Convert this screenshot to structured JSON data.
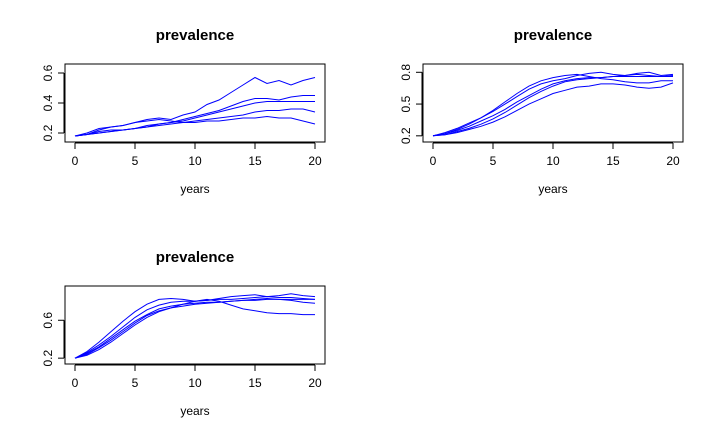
{
  "chart_data": [
    {
      "type": "line",
      "title": "prevalence",
      "xlabel": "years",
      "ylabel": "",
      "xlim": [
        0,
        20
      ],
      "ylim": [
        0.16,
        0.64
      ],
      "xticks": [
        0,
        5,
        10,
        15,
        20
      ],
      "yticks": [
        0.2,
        0.4,
        0.6
      ],
      "ytick_labels": [
        "0.2",
        "0.4",
        "0.6"
      ],
      "line_color": "#0000ff",
      "grid": false,
      "series": [
        {
          "x": [
            0,
            1,
            2,
            3,
            4,
            5,
            6,
            7,
            8,
            9,
            10,
            11,
            12,
            13,
            14,
            15,
            16,
            17,
            18,
            19,
            20
          ],
          "values": [
            0.18,
            0.19,
            0.22,
            0.24,
            0.25,
            0.27,
            0.29,
            0.3,
            0.29,
            0.32,
            0.34,
            0.39,
            0.42,
            0.47,
            0.52,
            0.57,
            0.53,
            0.55,
            0.52,
            0.55,
            0.57
          ]
        },
        {
          "x": [
            0,
            1,
            2,
            3,
            4,
            5,
            6,
            7,
            8,
            9,
            10,
            11,
            12,
            13,
            14,
            15,
            16,
            17,
            18,
            19,
            20
          ],
          "values": [
            0.18,
            0.19,
            0.21,
            0.22,
            0.22,
            0.23,
            0.25,
            0.26,
            0.27,
            0.29,
            0.31,
            0.33,
            0.35,
            0.38,
            0.41,
            0.43,
            0.43,
            0.42,
            0.44,
            0.45,
            0.45
          ]
        },
        {
          "x": [
            0,
            1,
            2,
            3,
            4,
            5,
            6,
            7,
            8,
            9,
            10,
            11,
            12,
            13,
            14,
            15,
            16,
            17,
            18,
            19,
            20
          ],
          "values": [
            0.18,
            0.19,
            0.2,
            0.21,
            0.22,
            0.23,
            0.24,
            0.26,
            0.27,
            0.28,
            0.3,
            0.32,
            0.34,
            0.36,
            0.38,
            0.4,
            0.41,
            0.41,
            0.41,
            0.41,
            0.41
          ]
        },
        {
          "x": [
            0,
            1,
            2,
            3,
            4,
            5,
            6,
            7,
            8,
            9,
            10,
            11,
            12,
            13,
            14,
            15,
            16,
            17,
            18,
            19,
            20
          ],
          "values": [
            0.18,
            0.19,
            0.2,
            0.21,
            0.22,
            0.23,
            0.24,
            0.25,
            0.26,
            0.27,
            0.28,
            0.29,
            0.3,
            0.31,
            0.32,
            0.34,
            0.35,
            0.35,
            0.36,
            0.36,
            0.34
          ]
        },
        {
          "x": [
            0,
            1,
            2,
            3,
            4,
            5,
            6,
            7,
            8,
            9,
            10,
            11,
            12,
            13,
            14,
            15,
            16,
            17,
            18,
            19,
            20
          ],
          "values": [
            0.18,
            0.2,
            0.23,
            0.24,
            0.25,
            0.27,
            0.28,
            0.29,
            0.28,
            0.27,
            0.27,
            0.28,
            0.28,
            0.29,
            0.3,
            0.3,
            0.31,
            0.3,
            0.3,
            0.28,
            0.26
          ]
        }
      ]
    },
    {
      "type": "line",
      "title": "prevalence",
      "xlabel": "years",
      "ylabel": "",
      "xlim": [
        0,
        20
      ],
      "ylim": [
        0.17,
        0.85
      ],
      "xticks": [
        0,
        5,
        10,
        15,
        20
      ],
      "yticks": [
        0.2,
        0.5,
        0.8
      ],
      "ytick_labels": [
        "0.2",
        "0.5",
        "0.8"
      ],
      "line_color": "#0000ff",
      "grid": false,
      "series": [
        {
          "x": [
            0,
            1,
            2,
            3,
            4,
            5,
            6,
            7,
            8,
            9,
            10,
            11,
            12,
            13,
            14,
            15,
            16,
            17,
            18,
            19,
            20
          ],
          "values": [
            0.2,
            0.22,
            0.26,
            0.31,
            0.37,
            0.44,
            0.52,
            0.6,
            0.67,
            0.72,
            0.75,
            0.77,
            0.78,
            0.76,
            0.74,
            0.73,
            0.71,
            0.7,
            0.7,
            0.72,
            0.72
          ]
        },
        {
          "x": [
            0,
            1,
            2,
            3,
            4,
            5,
            6,
            7,
            8,
            9,
            10,
            11,
            12,
            13,
            14,
            15,
            16,
            17,
            18,
            19,
            20
          ],
          "values": [
            0.2,
            0.22,
            0.25,
            0.29,
            0.34,
            0.39,
            0.45,
            0.52,
            0.58,
            0.64,
            0.69,
            0.72,
            0.74,
            0.75,
            0.75,
            0.76,
            0.76,
            0.76,
            0.76,
            0.76,
            0.76
          ]
        },
        {
          "x": [
            0,
            1,
            2,
            3,
            4,
            5,
            6,
            7,
            8,
            9,
            10,
            11,
            12,
            13,
            14,
            15,
            16,
            17,
            18,
            19,
            20
          ],
          "values": [
            0.2,
            0.21,
            0.24,
            0.27,
            0.31,
            0.36,
            0.42,
            0.49,
            0.56,
            0.62,
            0.67,
            0.71,
            0.73,
            0.74,
            0.75,
            0.76,
            0.77,
            0.78,
            0.77,
            0.76,
            0.77
          ]
        },
        {
          "x": [
            0,
            1,
            2,
            3,
            4,
            5,
            6,
            7,
            8,
            9,
            10,
            11,
            12,
            13,
            14,
            15,
            16,
            17,
            18,
            19,
            20
          ],
          "values": [
            0.2,
            0.21,
            0.23,
            0.26,
            0.29,
            0.33,
            0.38,
            0.44,
            0.5,
            0.55,
            0.6,
            0.63,
            0.66,
            0.67,
            0.69,
            0.69,
            0.68,
            0.66,
            0.65,
            0.66,
            0.7
          ]
        },
        {
          "x": [
            0,
            1,
            2,
            3,
            4,
            5,
            6,
            7,
            8,
            9,
            10,
            11,
            12,
            13,
            14,
            15,
            16,
            17,
            18,
            19,
            20
          ],
          "values": [
            0.2,
            0.23,
            0.27,
            0.32,
            0.37,
            0.43,
            0.5,
            0.57,
            0.64,
            0.69,
            0.72,
            0.74,
            0.77,
            0.79,
            0.8,
            0.78,
            0.77,
            0.79,
            0.8,
            0.77,
            0.78
          ]
        }
      ]
    },
    {
      "type": "line",
      "title": "prevalence",
      "xlabel": "years",
      "ylabel": "",
      "xlim": [
        0,
        20
      ],
      "ylim": [
        0.17,
        0.93
      ],
      "xticks": [
        0,
        5,
        10,
        15,
        20
      ],
      "yticks": [
        0.2,
        0.6
      ],
      "ytick_labels": [
        "0.2",
        "0.6"
      ],
      "line_color": "#0000ff",
      "grid": false,
      "series": [
        {
          "x": [
            0,
            1,
            2,
            3,
            4,
            5,
            6,
            7,
            8,
            9,
            10,
            11,
            12,
            13,
            14,
            15,
            16,
            17,
            18,
            19,
            20
          ],
          "values": [
            0.2,
            0.26,
            0.34,
            0.43,
            0.53,
            0.63,
            0.71,
            0.76,
            0.79,
            0.8,
            0.8,
            0.81,
            0.82,
            0.82,
            0.83,
            0.84,
            0.85,
            0.84,
            0.84,
            0.83,
            0.82
          ]
        },
        {
          "x": [
            0,
            1,
            2,
            3,
            4,
            5,
            6,
            7,
            8,
            9,
            10,
            11,
            12,
            13,
            14,
            15,
            16,
            17,
            18,
            19,
            20
          ],
          "values": [
            0.2,
            0.25,
            0.32,
            0.41,
            0.5,
            0.59,
            0.66,
            0.72,
            0.75,
            0.77,
            0.78,
            0.79,
            0.79,
            0.8,
            0.81,
            0.81,
            0.82,
            0.82,
            0.82,
            0.82,
            0.82
          ]
        },
        {
          "x": [
            0,
            1,
            2,
            3,
            4,
            5,
            6,
            7,
            8,
            9,
            10,
            11,
            12,
            13,
            14,
            15,
            16,
            17,
            18,
            19,
            20
          ],
          "values": [
            0.2,
            0.24,
            0.31,
            0.39,
            0.48,
            0.57,
            0.65,
            0.7,
            0.73,
            0.75,
            0.77,
            0.78,
            0.79,
            0.8,
            0.81,
            0.82,
            0.83,
            0.82,
            0.81,
            0.79,
            0.78
          ]
        },
        {
          "x": [
            0,
            1,
            2,
            3,
            4,
            5,
            6,
            7,
            8,
            9,
            10,
            11,
            12,
            13,
            14,
            15,
            16,
            17,
            18,
            19,
            20
          ],
          "values": [
            0.2,
            0.23,
            0.29,
            0.37,
            0.46,
            0.55,
            0.63,
            0.69,
            0.73,
            0.77,
            0.8,
            0.82,
            0.8,
            0.76,
            0.72,
            0.7,
            0.68,
            0.67,
            0.67,
            0.66,
            0.66
          ]
        },
        {
          "x": [
            0,
            1,
            2,
            3,
            4,
            5,
            6,
            7,
            8,
            9,
            10,
            11,
            12,
            13,
            14,
            15,
            16,
            17,
            18,
            19,
            20
          ],
          "values": [
            0.2,
            0.27,
            0.37,
            0.48,
            0.59,
            0.69,
            0.77,
            0.82,
            0.83,
            0.82,
            0.8,
            0.81,
            0.83,
            0.85,
            0.86,
            0.87,
            0.85,
            0.86,
            0.88,
            0.86,
            0.85
          ]
        }
      ]
    }
  ]
}
